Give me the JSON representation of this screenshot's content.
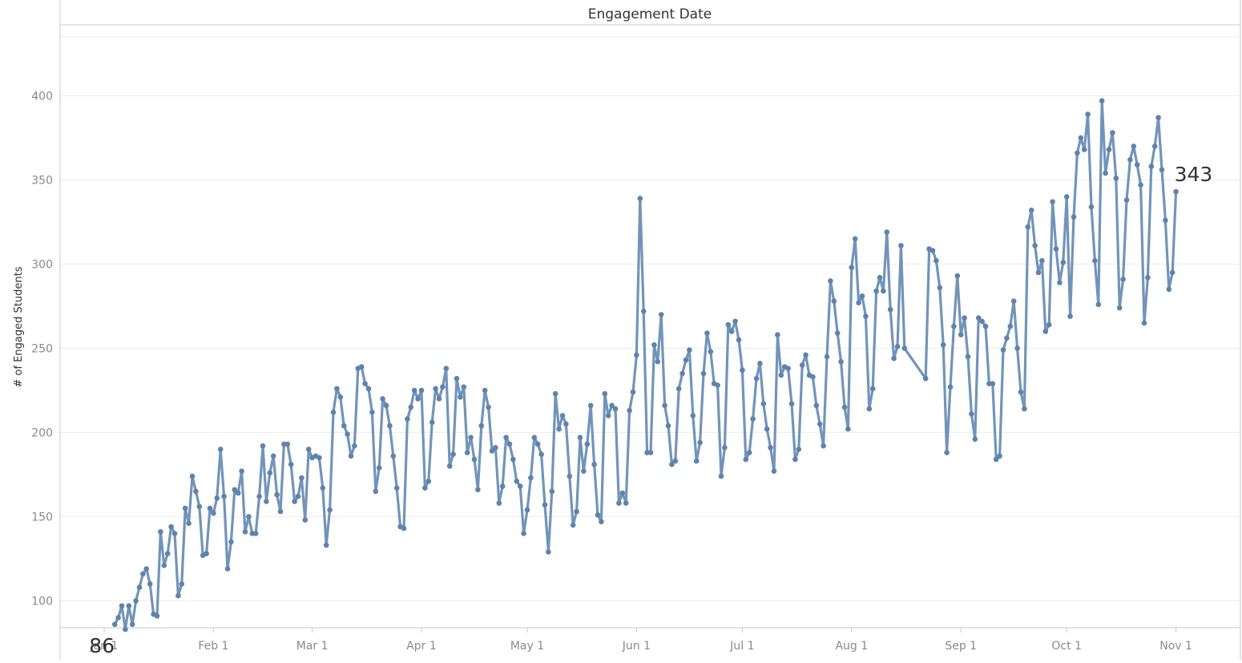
{
  "chart_data": {
    "type": "line",
    "title": "Engagement Date",
    "xlabel": "",
    "ylabel": "# of Engaged Students",
    "x_tick_labels": [
      "Jan 1",
      "Feb 1",
      "Mar 1",
      "Apr 1",
      "May 1",
      "Jun 1",
      "Jul 1",
      "Aug 1",
      "Sep 1",
      "Oct 1",
      "Nov 1"
    ],
    "y_ticks": [
      100,
      150,
      200,
      250,
      300,
      350,
      400
    ],
    "ylim": [
      74,
      414
    ],
    "xlim": [
      "2023-12-27",
      "2023-11-06"
    ],
    "grid": true,
    "legend": "none",
    "start_label": "86",
    "end_label": "343",
    "colors": {
      "line": "#7294b9",
      "marker": "#5e83ad",
      "text": "#333333",
      "tick_text": "#8a8a8a",
      "grid": "#ececec"
    },
    "series": [
      {
        "x": [
          "2023-01-04",
          "2023-01-05",
          "2023-01-06",
          "2023-01-07",
          "2023-01-08",
          "2023-01-09",
          "2023-01-10",
          "2023-01-11",
          "2023-01-12",
          "2023-01-13",
          "2023-01-14",
          "2023-01-15",
          "2023-01-16",
          "2023-01-17",
          "2023-01-18",
          "2023-01-19",
          "2023-01-20",
          "2023-01-21",
          "2023-01-22",
          "2023-01-23",
          "2023-01-24",
          "2023-01-25",
          "2023-01-26",
          "2023-01-27",
          "2023-01-28",
          "2023-01-29",
          "2023-01-30",
          "2023-01-31",
          "2023-02-01",
          "2023-02-02",
          "2023-02-03",
          "2023-02-04",
          "2023-02-05",
          "2023-02-06",
          "2023-02-07",
          "2023-02-08",
          "2023-02-09",
          "2023-02-10",
          "2023-02-11",
          "2023-02-12",
          "2023-02-13",
          "2023-02-14",
          "2023-02-15",
          "2023-02-16",
          "2023-02-17",
          "2023-02-18",
          "2023-02-19",
          "2023-02-20",
          "2023-02-21",
          "2023-02-22",
          "2023-02-23",
          "2023-02-24",
          "2023-02-25",
          "2023-02-26",
          "2023-02-27",
          "2023-02-28",
          "2023-03-01",
          "2023-03-02",
          "2023-03-03",
          "2023-03-04",
          "2023-03-05",
          "2023-03-06",
          "2023-03-07",
          "2023-03-08",
          "2023-03-09",
          "2023-03-10",
          "2023-03-11",
          "2023-03-12",
          "2023-03-13",
          "2023-03-14",
          "2023-03-15",
          "2023-03-16",
          "2023-03-17",
          "2023-03-18",
          "2023-03-19",
          "2023-03-20",
          "2023-03-21",
          "2023-03-22",
          "2023-03-23",
          "2023-03-24",
          "2023-03-25",
          "2023-03-26",
          "2023-03-27",
          "2023-03-28",
          "2023-03-29",
          "2023-03-30",
          "2023-03-31",
          "2023-04-01",
          "2023-04-02",
          "2023-04-03",
          "2023-04-04",
          "2023-04-05",
          "2023-04-06",
          "2023-04-07",
          "2023-04-08",
          "2023-04-09",
          "2023-04-10",
          "2023-04-11",
          "2023-04-12",
          "2023-04-13",
          "2023-04-14",
          "2023-04-15",
          "2023-04-16",
          "2023-04-17",
          "2023-04-18",
          "2023-04-19",
          "2023-04-20",
          "2023-04-21",
          "2023-04-22",
          "2023-04-23",
          "2023-04-24",
          "2023-04-25",
          "2023-04-26",
          "2023-04-27",
          "2023-04-28",
          "2023-04-29",
          "2023-04-30",
          "2023-05-01",
          "2023-05-02",
          "2023-05-03",
          "2023-05-04",
          "2023-05-05",
          "2023-05-06",
          "2023-05-07",
          "2023-05-08",
          "2023-05-09",
          "2023-05-10",
          "2023-05-11",
          "2023-05-12",
          "2023-05-13",
          "2023-05-14",
          "2023-05-15",
          "2023-05-16",
          "2023-05-17",
          "2023-05-18",
          "2023-05-19",
          "2023-05-20",
          "2023-05-21",
          "2023-05-22",
          "2023-05-23",
          "2023-05-24",
          "2023-05-25",
          "2023-05-26",
          "2023-05-27",
          "2023-05-28",
          "2023-05-29",
          "2023-05-30",
          "2023-05-31",
          "2023-06-01",
          "2023-06-02",
          "2023-06-03",
          "2023-06-04",
          "2023-06-05",
          "2023-06-06",
          "2023-06-07",
          "2023-06-08",
          "2023-06-09",
          "2023-06-10",
          "2023-06-11",
          "2023-06-12",
          "2023-06-13",
          "2023-06-14",
          "2023-06-15",
          "2023-06-16",
          "2023-06-17",
          "2023-06-18",
          "2023-06-19",
          "2023-06-20",
          "2023-06-21",
          "2023-06-22",
          "2023-06-23",
          "2023-06-24",
          "2023-06-25",
          "2023-06-26",
          "2023-06-27",
          "2023-06-28",
          "2023-06-29",
          "2023-06-30",
          "2023-07-01",
          "2023-07-02",
          "2023-07-03",
          "2023-07-04",
          "2023-07-05",
          "2023-07-06",
          "2023-07-07",
          "2023-07-08",
          "2023-07-09",
          "2023-07-10",
          "2023-07-11",
          "2023-07-12",
          "2023-07-13",
          "2023-07-14",
          "2023-07-15",
          "2023-07-16",
          "2023-07-17",
          "2023-07-18",
          "2023-07-19",
          "2023-07-20",
          "2023-07-21",
          "2023-07-22",
          "2023-07-23",
          "2023-07-24",
          "2023-07-25",
          "2023-07-26",
          "2023-07-27",
          "2023-07-28",
          "2023-07-29",
          "2023-07-30",
          "2023-07-31",
          "2023-08-01",
          "2023-08-02",
          "2023-08-03",
          "2023-08-04",
          "2023-08-05",
          "2023-08-06",
          "2023-08-07",
          "2023-08-08",
          "2023-08-09",
          "2023-08-10",
          "2023-08-11",
          "2023-08-12",
          "2023-08-13",
          "2023-08-14",
          "2023-08-15",
          "2023-08-16",
          "2023-08-22",
          "2023-08-23",
          "2023-08-24",
          "2023-08-25",
          "2023-08-26",
          "2023-08-27",
          "2023-08-28",
          "2023-08-29",
          "2023-08-30",
          "2023-08-31",
          "2023-09-01",
          "2023-09-02",
          "2023-09-03",
          "2023-09-04",
          "2023-09-05",
          "2023-09-06",
          "2023-09-07",
          "2023-09-08",
          "2023-09-09",
          "2023-09-10",
          "2023-09-11",
          "2023-09-12",
          "2023-09-13",
          "2023-09-14",
          "2023-09-15",
          "2023-09-16",
          "2023-09-17",
          "2023-09-18",
          "2023-09-19",
          "2023-09-20",
          "2023-09-21",
          "2023-09-22",
          "2023-09-23",
          "2023-09-24",
          "2023-09-25",
          "2023-09-26",
          "2023-09-27",
          "2023-09-28",
          "2023-09-29",
          "2023-09-30",
          "2023-10-01",
          "2023-10-02",
          "2023-10-03",
          "2023-10-04",
          "2023-10-05",
          "2023-10-06",
          "2023-10-07",
          "2023-10-08",
          "2023-10-09",
          "2023-10-10",
          "2023-10-11",
          "2023-10-12",
          "2023-10-13",
          "2023-10-14",
          "2023-10-15",
          "2023-10-16",
          "2023-10-17",
          "2023-10-18",
          "2023-10-19",
          "2023-10-20",
          "2023-10-21",
          "2023-10-22",
          "2023-10-23",
          "2023-10-24",
          "2023-10-25",
          "2023-10-26",
          "2023-10-27",
          "2023-10-28",
          "2023-10-29",
          "2023-10-30",
          "2023-10-31",
          "2023-11-01"
        ],
        "y": [
          86,
          90,
          97,
          83,
          97,
          86,
          100,
          108,
          116,
          119,
          110,
          92,
          91,
          141,
          121,
          128,
          144,
          140,
          103,
          110,
          155,
          146,
          174,
          165,
          156,
          127,
          128,
          155,
          152,
          161,
          190,
          162,
          119,
          135,
          166,
          164,
          177,
          141,
          150,
          140,
          140,
          162,
          192,
          159,
          176,
          186,
          163,
          153,
          193,
          193,
          181,
          159,
          162,
          173,
          148,
          190,
          185,
          186,
          185,
          167,
          133,
          154,
          212,
          226,
          221,
          204,
          199,
          186,
          192,
          238,
          239,
          229,
          226,
          212,
          165,
          179,
          220,
          216,
          204,
          186,
          167,
          144,
          143,
          208,
          215,
          225,
          220,
          225,
          167,
          171,
          206,
          226,
          220,
          227,
          238,
          180,
          187,
          232,
          221,
          227,
          188,
          197,
          184,
          166,
          204,
          225,
          215,
          189,
          191,
          158,
          168,
          197,
          193,
          184,
          171,
          168,
          140,
          154,
          173,
          197,
          193,
          187,
          157,
          129,
          165,
          223,
          202,
          210,
          205,
          174,
          145,
          153,
          197,
          177,
          193,
          216,
          181,
          151,
          147,
          223,
          210,
          216,
          214,
          158,
          164,
          158,
          213,
          224,
          246,
          339,
          272,
          188,
          188,
          252,
          242,
          270,
          216,
          204,
          181,
          183,
          226,
          235,
          243,
          249,
          210,
          183,
          194,
          235,
          259,
          248,
          229,
          228,
          174,
          191,
          264,
          260,
          266,
          255,
          237,
          184,
          188,
          208,
          232,
          241,
          217,
          202,
          191,
          177,
          258,
          234,
          239,
          238,
          217,
          184,
          190,
          240,
          246,
          234,
          233,
          216,
          205,
          192,
          245,
          290,
          278,
          259,
          242,
          215,
          202,
          298,
          315,
          277,
          281,
          269,
          214,
          226,
          284,
          292,
          284,
          319,
          273,
          244,
          251,
          311,
          250,
          232,
          309,
          308,
          302,
          286,
          252,
          188,
          227,
          263,
          293,
          258,
          268,
          245,
          211,
          196,
          268,
          266,
          263,
          229,
          229,
          184,
          186,
          249,
          256,
          263,
          278,
          250,
          224,
          214,
          322,
          332,
          311,
          295,
          302,
          260,
          264,
          337,
          309,
          289,
          301,
          340,
          269,
          328,
          366,
          375,
          368,
          389,
          334,
          302,
          276,
          397,
          354,
          368,
          378,
          351,
          274,
          291,
          338,
          362,
          370,
          359,
          347,
          265,
          292,
          358,
          370,
          387,
          356,
          326,
          285,
          295,
          343
        ]
      }
    ]
  }
}
